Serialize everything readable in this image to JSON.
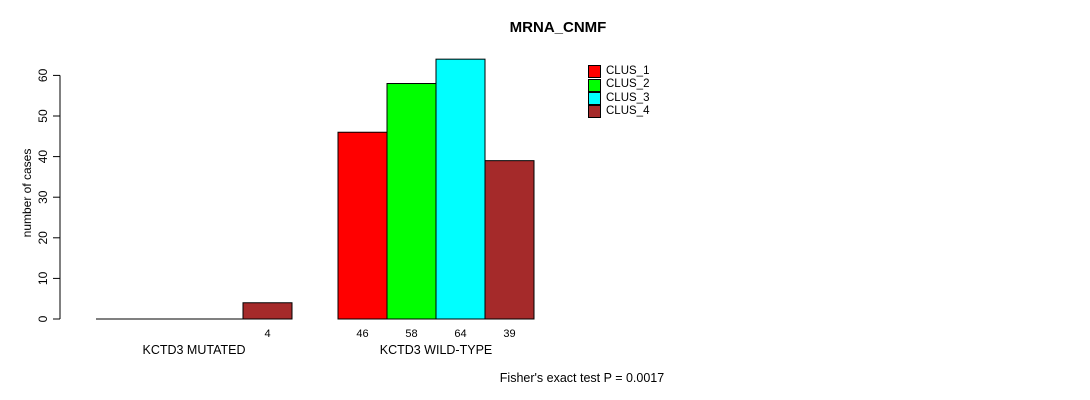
{
  "chart_data": {
    "type": "bar",
    "title": "MRNA_CNMF",
    "xlabel": "",
    "ylabel": "number of cases",
    "ylim": [
      0,
      64
    ],
    "yticks": [
      0,
      10,
      20,
      30,
      40,
      50,
      60
    ],
    "grid": false,
    "legend_position": "top-right",
    "categories": [
      "KCTD3 MUTATED",
      "KCTD3 WILD-TYPE"
    ],
    "series": [
      {
        "name": "CLUS_1",
        "color": "#FF0000",
        "values": [
          0,
          46
        ]
      },
      {
        "name": "CLUS_2",
        "color": "#00FF00",
        "values": [
          0,
          58
        ]
      },
      {
        "name": "CLUS_3",
        "color": "#00FFFF",
        "values": [
          0,
          64
        ]
      },
      {
        "name": "CLUS_4",
        "color": "#A52A2A",
        "values": [
          4,
          39
        ]
      }
    ],
    "bar_value_labels": [
      [
        "",
        "",
        "",
        "4"
      ],
      [
        "46",
        "58",
        "64",
        "39"
      ]
    ],
    "bar_border_color": "#000000",
    "axis_color": "#000000",
    "annotation": "Fisher's exact test P = 0.0017"
  }
}
